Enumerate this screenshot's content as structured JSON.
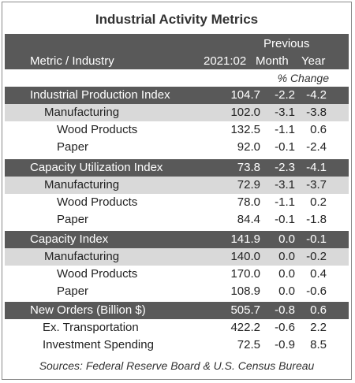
{
  "title": "Industrial Activity Metrics",
  "header": {
    "metric_label": "Metric / Industry",
    "col_period": "2021:02",
    "previous_label": "Previous",
    "col_month": "Month",
    "col_year": "Year",
    "pct_change_label": "% Change"
  },
  "rows": [
    {
      "label": "Industrial Production Index",
      "value": "104.7",
      "month": "-2.2",
      "year": "-4.2"
    },
    {
      "label": "Manufacturing",
      "value": "102.0",
      "month": "-3.1",
      "year": "-3.8"
    },
    {
      "label": "Wood Products",
      "value": "132.5",
      "month": "-1.1",
      "year": "0.6"
    },
    {
      "label": "Paper",
      "value": "92.0",
      "month": "-0.1",
      "year": "-2.4"
    },
    {
      "label": "Capacity Utilization Index",
      "value": "73.8",
      "month": "-2.3",
      "year": "-4.1"
    },
    {
      "label": "Manufacturing",
      "value": "72.9",
      "month": "-3.1",
      "year": "-3.7"
    },
    {
      "label": "Wood Products",
      "value": "78.0",
      "month": "-1.1",
      "year": "0.2"
    },
    {
      "label": "Paper",
      "value": "84.4",
      "month": "-0.1",
      "year": "-1.8"
    },
    {
      "label": "Capacity Index",
      "value": "141.9",
      "month": "0.0",
      "year": "-0.1"
    },
    {
      "label": "Manufacturing",
      "value": "140.0",
      "month": "0.0",
      "year": "-0.2"
    },
    {
      "label": "Wood Products",
      "value": "170.0",
      "month": "0.0",
      "year": "0.4"
    },
    {
      "label": "Paper",
      "value": "108.9",
      "month": "0.0",
      "year": "-0.6"
    },
    {
      "label": "New Orders (Billion $)",
      "value": "505.7",
      "month": "-0.8",
      "year": "0.6"
    },
    {
      "label": "Ex. Transportation",
      "value": "422.2",
      "month": "-0.6",
      "year": "2.2"
    },
    {
      "label": "Investment Spending",
      "value": "72.5",
      "month": "-0.9",
      "year": "8.5"
    }
  ],
  "source": "Sources: Federal Reserve Board & U.S. Census Bureau"
}
